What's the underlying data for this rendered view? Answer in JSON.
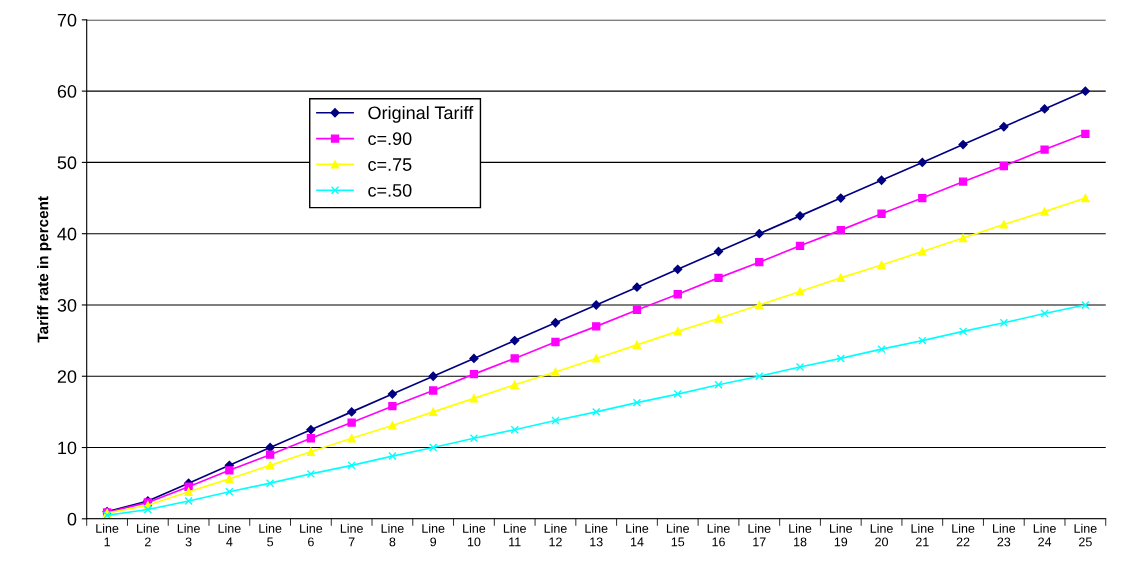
{
  "chart_data": {
    "type": "line",
    "ylabel": "Tariff rate in percent",
    "categories": [
      "Line\n1",
      "Line\n2",
      "Line\n3",
      "Line\n4",
      "Line\n5",
      "Line\n6",
      "Line\n7",
      "Line\n8",
      "Line\n9",
      "Line\n10",
      "Line\n11",
      "Line\n12",
      "Line\n13",
      "Line\n14",
      "Line\n15",
      "Line\n16",
      "Line\n17",
      "Line\n18",
      "Line\n19",
      "Line\n20",
      "Line\n21",
      "Line\n22",
      "Line\n23",
      "Line\n24",
      "Line\n25"
    ],
    "series": [
      {
        "name": "Original Tariff",
        "color": "#000080",
        "marker": "diamond",
        "values": [
          1,
          2.5,
          5,
          7.5,
          10,
          12.5,
          15,
          17.5,
          20,
          22.5,
          25,
          27.5,
          30,
          32.5,
          35,
          37.5,
          40,
          42.5,
          45,
          47.5,
          50,
          52.5,
          55,
          57.5,
          60
        ]
      },
      {
        "name": "c=.90",
        "color": "#ff00ff",
        "marker": "square",
        "values": [
          0.9,
          2.3,
          4.5,
          6.8,
          9,
          11.3,
          13.5,
          15.8,
          18,
          20.3,
          22.5,
          24.8,
          27,
          29.3,
          31.5,
          33.8,
          36,
          38.3,
          40.5,
          42.8,
          45,
          47.3,
          49.5,
          51.8,
          54
        ]
      },
      {
        "name": "c=.75",
        "color": "#ffff00",
        "marker": "triangle",
        "values": [
          0.8,
          1.9,
          3.8,
          5.6,
          7.5,
          9.4,
          11.3,
          13.1,
          15,
          16.9,
          18.8,
          20.6,
          22.5,
          24.4,
          26.3,
          28.1,
          30,
          31.9,
          33.8,
          35.6,
          37.5,
          39.4,
          41.3,
          43.1,
          45
        ]
      },
      {
        "name": "c=.50",
        "color": "#00ffff",
        "marker": "cross",
        "values": [
          0.5,
          1.3,
          2.5,
          3.8,
          5,
          6.3,
          7.5,
          8.8,
          10,
          11.3,
          12.5,
          13.8,
          15,
          16.3,
          17.5,
          18.8,
          20,
          21.3,
          22.5,
          23.8,
          25,
          26.3,
          27.5,
          28.8,
          30
        ]
      }
    ],
    "ylim": [
      0,
      70
    ],
    "yticks": [
      0,
      10,
      20,
      30,
      40,
      50,
      60,
      70
    ],
    "grid": "y",
    "legend": "top left",
    "line_style": "solid"
  }
}
